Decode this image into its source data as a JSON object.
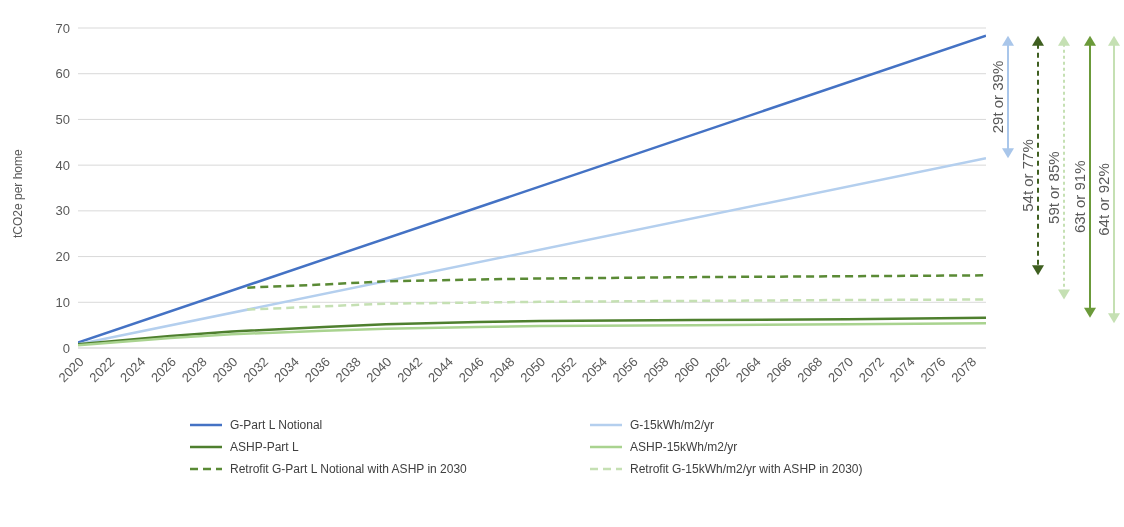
{
  "chart_data": {
    "type": "line",
    "ylabel": "tCO2e per home",
    "xlim": [
      2020,
      2079
    ],
    "xticks": [
      2020,
      2022,
      2024,
      2026,
      2028,
      2030,
      2032,
      2034,
      2036,
      2038,
      2040,
      2042,
      2044,
      2046,
      2048,
      2050,
      2052,
      2054,
      2056,
      2058,
      2060,
      2062,
      2064,
      2066,
      2068,
      2070,
      2072,
      2074,
      2076,
      2078
    ],
    "ylim": [
      0,
      70
    ],
    "yticks": [
      0,
      10,
      20,
      30,
      40,
      50,
      60,
      70
    ],
    "grid": "y",
    "legend": "bottom",
    "marker": "none",
    "series": [
      {
        "name": "G-Part L Notional",
        "color": "#4472c4",
        "x": [
          2020,
          2079
        ],
        "values": [
          1.2,
          68.3
        ]
      },
      {
        "name": "G-15kWh/m2/yr",
        "color": "#b4cfee",
        "x": [
          2020,
          2079
        ],
        "values": [
          0.8,
          41.5
        ]
      },
      {
        "name": "ASHP-Part L",
        "color": "#4e7f2e",
        "x": [
          2020,
          2026,
          2030,
          2036,
          2040,
          2046,
          2050,
          2060,
          2070,
          2079
        ],
        "values": [
          0.8,
          2.6,
          3.6,
          4.6,
          5.2,
          5.7,
          5.9,
          6.1,
          6.3,
          6.6
        ]
      },
      {
        "name": "ASHP-15kWh/m2/yr",
        "color": "#a9d38f",
        "x": [
          2020,
          2026,
          2030,
          2036,
          2040,
          2046,
          2050,
          2060,
          2070,
          2079
        ],
        "values": [
          0.6,
          2.2,
          3.0,
          3.8,
          4.2,
          4.6,
          4.8,
          5.0,
          5.2,
          5.4
        ]
      },
      {
        "name": "Retrofit G-Part L Notional with ASHP in 2030",
        "color": "#5a8a35",
        "line_style": "dashed",
        "x": [
          2031,
          2036,
          2040,
          2046,
          2050,
          2060,
          2070,
          2079
        ],
        "values": [
          13.2,
          13.9,
          14.6,
          15.0,
          15.2,
          15.5,
          15.7,
          15.9
        ]
      },
      {
        "name": "Retrofit G-15kWh/m2/yr with ASHP in 2030)",
        "color": "#c5e0b3",
        "line_style": "dashed",
        "x": [
          2031,
          2040,
          2050,
          2060,
          2070,
          2079
        ],
        "values": [
          8.4,
          9.7,
          10.1,
          10.3,
          10.5,
          10.6
        ]
      }
    ],
    "annotations": [
      "29t or 39%",
      "54t or 77%",
      "59t or 85%",
      "63t or 91%",
      "64t or 92%"
    ]
  }
}
